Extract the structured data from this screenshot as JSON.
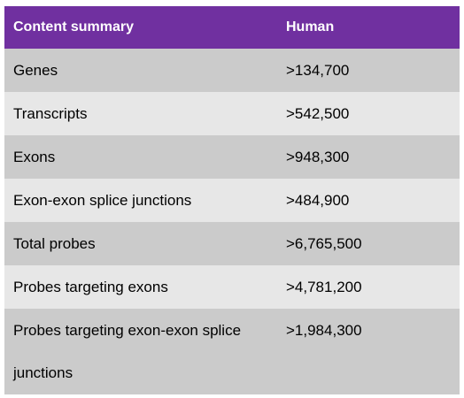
{
  "table": {
    "header": {
      "col1": "Content summary",
      "col2": "Human"
    },
    "rows": [
      {
        "label": "Genes",
        "value": ">134,700"
      },
      {
        "label": "Transcripts",
        "value": ">542,500"
      },
      {
        "label": "Exons",
        "value": ">948,300"
      },
      {
        "label": "Exon-exon splice junctions",
        "value": ">484,900"
      },
      {
        "label": "Total probes",
        "value": ">6,765,500"
      },
      {
        "label": "Probes targeting exons",
        "value": ">4,781,200"
      },
      {
        "label": "Probes targeting exon-exon splice junctions",
        "value": ">1,984,300"
      }
    ],
    "colors": {
      "header_bg": "#7030a0",
      "row_dark": "#cbcbcb",
      "row_light": "#e7e7e7"
    }
  }
}
